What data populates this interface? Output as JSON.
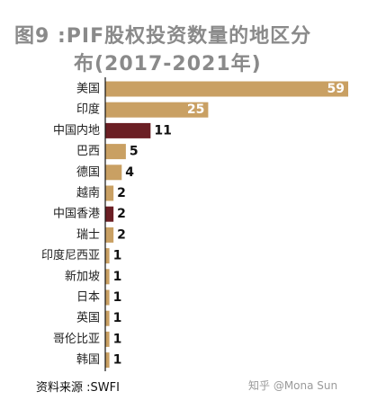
{
  "chart_data": {
    "type": "bar",
    "orientation": "horizontal",
    "title_line1": "图9 :PIF股权投资数量的地区分",
    "title_line2": "布(2017-2021年)",
    "categories": [
      "美国",
      "印度",
      "中国内地",
      "巴西",
      "德国",
      "越南",
      "中国香港",
      "瑞士",
      "印度尼西亚",
      "新加坡",
      "日本",
      "英国",
      "哥伦比亚",
      "韩国"
    ],
    "values": [
      59,
      25,
      11,
      5,
      4,
      2,
      2,
      2,
      1,
      1,
      1,
      1,
      1,
      1
    ],
    "highlighted": [
      "中国内地",
      "中国香港"
    ],
    "xlim": [
      0,
      59
    ],
    "grid": false,
    "legend": "none",
    "colors": {
      "bar": "#c9a063",
      "highlight": "#6b1f24",
      "axis": "#111111",
      "title": "#8a8a8a",
      "label_inside": "#ffffff",
      "label_outside": "#111111"
    }
  },
  "footer": {
    "source": "资料来源 :SWFI",
    "watermark": "知乎 @Mona Sun"
  }
}
